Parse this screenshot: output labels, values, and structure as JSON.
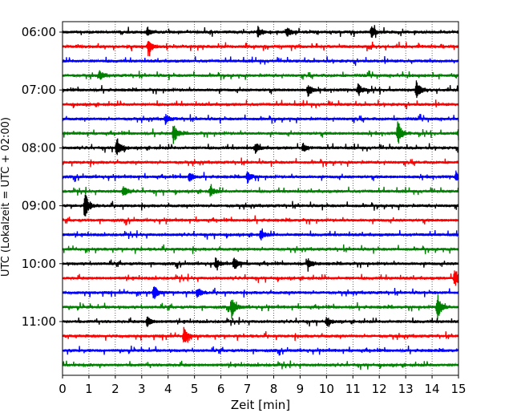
{
  "chart_data": {
    "type": "line",
    "title": "",
    "xlabel": "Zeit  [min]",
    "ylabel": "UTC (Lokalzeit = UTC + 02:00)",
    "xlim": [
      0,
      15
    ],
    "x_ticks": [
      "0",
      "1",
      "2",
      "3",
      "4",
      "5",
      "6",
      "7",
      "8",
      "9",
      "10",
      "11",
      "12",
      "13",
      "14",
      "15"
    ],
    "y_ticks": [
      "06:00",
      "07:00",
      "08:00",
      "09:00",
      "10:00",
      "11:00"
    ],
    "x_grid": "dotted vertical at each minute",
    "trace_interval_min": 15,
    "trace_colors": [
      "#000000",
      "#ff0000",
      "#0000ff",
      "#008000"
    ],
    "traces": [
      {
        "start": "06:00",
        "color": "#000000",
        "events": [
          {
            "t": 3.2,
            "amp": 0.25
          },
          {
            "t": 7.4,
            "amp": 0.3
          },
          {
            "t": 8.5,
            "amp": 0.3
          },
          {
            "t": 11.7,
            "amp": 0.35
          }
        ]
      },
      {
        "start": "06:15",
        "color": "#ff0000",
        "events": [
          {
            "t": 3.25,
            "amp": 0.5
          }
        ]
      },
      {
        "start": "06:30",
        "color": "#0000ff",
        "events": []
      },
      {
        "start": "06:45",
        "color": "#008000",
        "events": [
          {
            "t": 1.4,
            "amp": 0.25
          }
        ]
      },
      {
        "start": "07:00",
        "color": "#000000",
        "events": [
          {
            "t": 9.3,
            "amp": 0.35
          },
          {
            "t": 11.2,
            "amp": 0.35
          },
          {
            "t": 13.4,
            "amp": 0.55
          }
        ]
      },
      {
        "start": "07:15",
        "color": "#ff0000",
        "events": []
      },
      {
        "start": "07:30",
        "color": "#0000ff",
        "events": [
          {
            "t": 3.9,
            "amp": 0.25
          }
        ]
      },
      {
        "start": "07:45",
        "color": "#008000",
        "events": [
          {
            "t": 4.2,
            "amp": 0.55
          },
          {
            "t": 12.7,
            "amp": 0.75
          },
          {
            "t": 15.0,
            "amp": 0.35
          }
        ]
      },
      {
        "start": "08:00",
        "color": "#000000",
        "events": [
          {
            "t": 2.05,
            "amp": 0.65
          },
          {
            "t": 7.3,
            "amp": 0.3
          },
          {
            "t": 9.1,
            "amp": 0.25
          }
        ]
      },
      {
        "start": "08:15",
        "color": "#ff0000",
        "events": []
      },
      {
        "start": "08:30",
        "color": "#0000ff",
        "events": [
          {
            "t": 4.8,
            "amp": 0.3
          },
          {
            "t": 7.0,
            "amp": 0.35
          },
          {
            "t": 14.9,
            "amp": 0.3
          }
        ]
      },
      {
        "start": "08:45",
        "color": "#008000",
        "events": [
          {
            "t": 2.3,
            "amp": 0.3
          },
          {
            "t": 5.6,
            "amp": 0.3
          }
        ]
      },
      {
        "start": "09:00",
        "color": "#000000",
        "events": [
          {
            "t": 0.85,
            "amp": 0.8
          }
        ]
      },
      {
        "start": "09:15",
        "color": "#ff0000",
        "events": []
      },
      {
        "start": "09:30",
        "color": "#0000ff",
        "events": [
          {
            "t": 7.5,
            "amp": 0.3
          }
        ]
      },
      {
        "start": "09:45",
        "color": "#008000",
        "events": []
      },
      {
        "start": "10:00",
        "color": "#000000",
        "events": [
          {
            "t": 5.8,
            "amp": 0.3
          },
          {
            "t": 6.5,
            "amp": 0.4
          },
          {
            "t": 9.3,
            "amp": 0.3
          }
        ]
      },
      {
        "start": "10:15",
        "color": "#ff0000",
        "events": [
          {
            "t": 14.85,
            "amp": 0.6
          }
        ]
      },
      {
        "start": "10:30",
        "color": "#0000ff",
        "events": [
          {
            "t": 3.45,
            "amp": 0.45
          },
          {
            "t": 5.1,
            "amp": 0.3
          }
        ]
      },
      {
        "start": "10:45",
        "color": "#008000",
        "events": [
          {
            "t": 6.4,
            "amp": 0.6
          },
          {
            "t": 14.2,
            "amp": 0.75
          }
        ]
      },
      {
        "start": "11:00",
        "color": "#000000",
        "events": [
          {
            "t": 3.2,
            "amp": 0.3
          },
          {
            "t": 10.0,
            "amp": 0.25
          }
        ]
      },
      {
        "start": "11:15",
        "color": "#ff0000",
        "events": [
          {
            "t": 4.6,
            "amp": 0.55
          }
        ]
      },
      {
        "start": "11:30",
        "color": "#0000ff",
        "events": []
      },
      {
        "start": "11:45",
        "color": "#008000",
        "events": []
      }
    ]
  }
}
